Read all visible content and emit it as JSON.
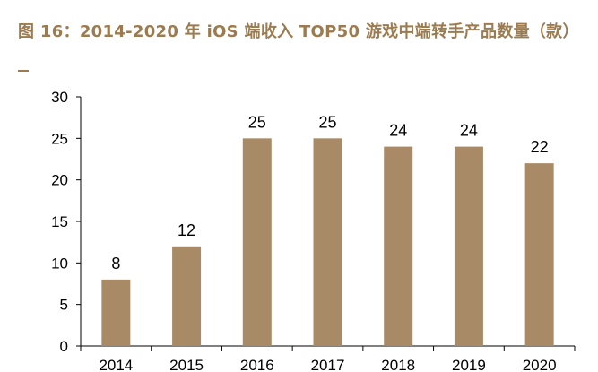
{
  "figure": {
    "title": "图 16：2014-2020 年 iOS 端收入 TOP50 游戏中端转手产品数量（款）"
  },
  "colors": {
    "bar": "#a88b66",
    "title": "#9b7b4f",
    "axis": "#000000"
  },
  "chart_data": {
    "type": "bar",
    "categories": [
      "2014",
      "2015",
      "2016",
      "2017",
      "2018",
      "2019",
      "2020"
    ],
    "values": [
      8,
      12,
      25,
      25,
      24,
      24,
      22
    ],
    "data_labels": [
      "8",
      "12",
      "25",
      "25",
      "24",
      "24",
      "22"
    ],
    "y_ticks": [
      "0",
      "5",
      "10",
      "15",
      "20",
      "25",
      "30"
    ],
    "ylim": [
      0,
      30
    ],
    "title": "图 16：2014-2020 年 iOS 端收入 TOP50 游戏中端转手产品数量（款）",
    "xlabel": "",
    "ylabel": "",
    "grid": false,
    "legend": "none"
  }
}
